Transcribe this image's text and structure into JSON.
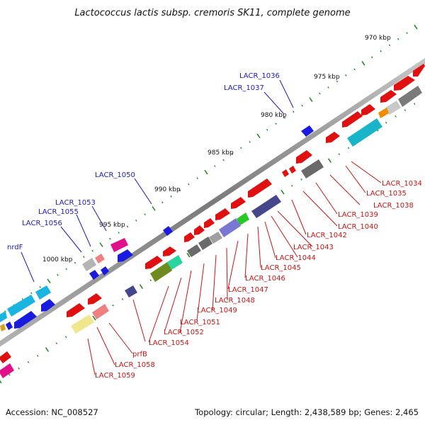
{
  "title": "Lactococcus lactis subsp. cremoris SK11, complete genome",
  "accession": "Accession: NC_008527",
  "topology": "Topology: circular; Length: 2,438,589 bp; Genes: 2,465",
  "kbp_labels": [
    "970 kbp",
    "975 kbp",
    "980 kbp",
    "985 kbp",
    "990 kbp",
    "995 kbp",
    "1000 kbp"
  ],
  "gene_labels_forward": [
    "LACR_1036",
    "LACR_1037",
    "LACR_1050",
    "LACR_1053",
    "LACR_1055",
    "LACR_1056",
    "nrdF"
  ],
  "gene_labels_reverse": [
    "LACR_1034",
    "LACR_1035",
    "LACR_1038",
    "LACR_1039",
    "LACR_1040",
    "LACR_1042",
    "LACR_1043",
    "LACR_1044",
    "LACR_1045",
    "LACR_1046",
    "LACR_1047",
    "LACR_1048",
    "LACR_1049",
    "LACR_1051",
    "LACR_1052",
    "LACR_1054",
    "prfB",
    "LACR_1058",
    "LACR_1059"
  ],
  "colors": {
    "forward_label": "#1a1ab4",
    "reverse_label": "#c81414",
    "backbone": "#8a8a8a",
    "tick": "#2a8a2a"
  }
}
